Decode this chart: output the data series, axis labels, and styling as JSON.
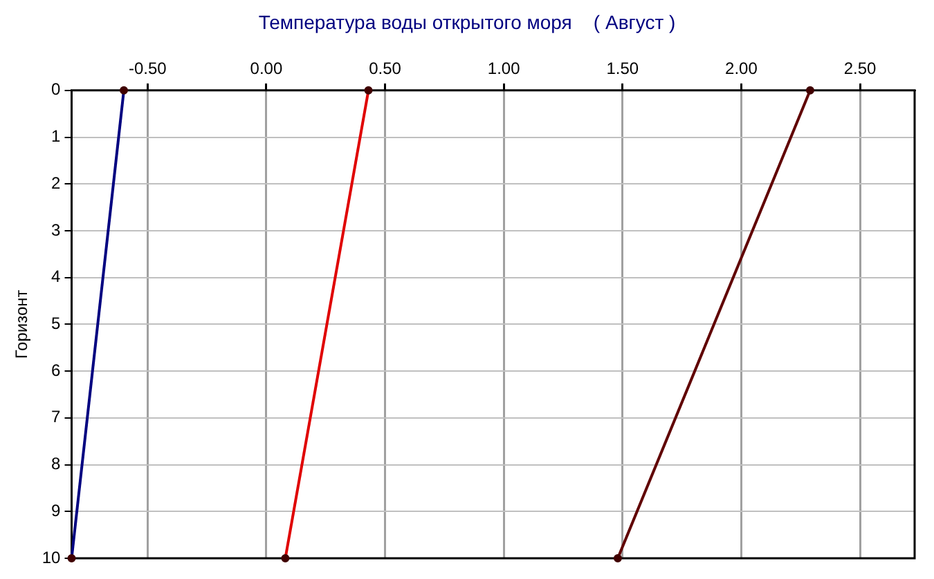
{
  "chart_data": {
    "type": "line",
    "title": "Температура воды открытого моря    ( Август )",
    "ylabel": "Горизонт",
    "series": [
      {
        "color": "#000080",
        "x": [
          -0.6,
          -0.82
        ],
        "values": [
          0,
          10
        ]
      },
      {
        "color": "#e00000",
        "x": [
          0.43,
          0.08
        ],
        "values": [
          0,
          10
        ]
      },
      {
        "color": "#600000",
        "x": [
          2.29,
          1.48
        ],
        "values": [
          0,
          10
        ]
      }
    ],
    "xlim": [
      -0.82,
      2.73
    ],
    "xticks": [
      {
        "value": -0.5,
        "label": "-0.50"
      },
      {
        "value": 0,
        "label": "0.00"
      },
      {
        "value": 0.5,
        "label": "0.50"
      },
      {
        "value": 1,
        "label": "1.00"
      },
      {
        "value": 1.5,
        "label": "1.50"
      },
      {
        "value": 2,
        "label": "2.00"
      },
      {
        "value": 2.5,
        "label": "2.50"
      }
    ],
    "ylim": [
      10,
      0
    ],
    "yticks": [
      0,
      1,
      2,
      3,
      4,
      5,
      6,
      7,
      8,
      9,
      10
    ],
    "grid": true,
    "legend": false,
    "marker": "circle",
    "line_style": "solid"
  }
}
